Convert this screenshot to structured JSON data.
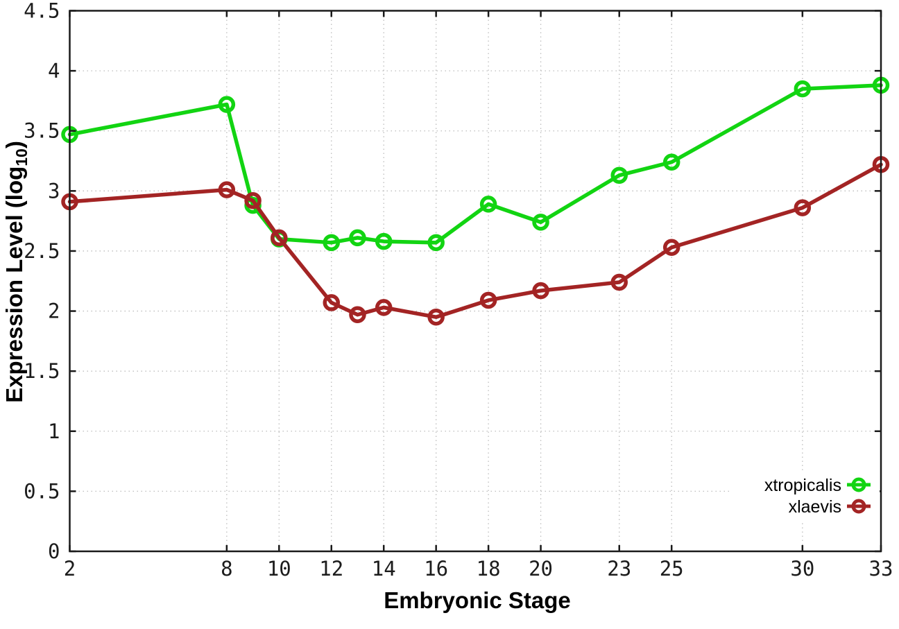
{
  "figure": {
    "background": "#ffffff",
    "xlabel": "Embryonic Stage",
    "ylabel_prefix": "Expression Level (log",
    "ylabel_sub": "10",
    "ylabel_suffix": ")"
  },
  "chart_data": {
    "type": "line",
    "title": "",
    "xlabel": "Embryonic Stage",
    "ylabel": "Expression Level (log10)",
    "x": [
      2,
      8,
      9,
      10,
      12,
      13,
      14,
      16,
      18,
      20,
      23,
      25,
      30,
      33
    ],
    "series": [
      {
        "name": "xtropicalis",
        "color": "#12d412",
        "values": [
          3.47,
          3.72,
          2.88,
          2.6,
          2.57,
          2.61,
          2.58,
          2.57,
          2.89,
          2.74,
          3.13,
          3.24,
          3.85,
          3.88
        ]
      },
      {
        "name": "xlaevis",
        "color": "#a32424",
        "values": [
          2.91,
          3.01,
          2.92,
          2.61,
          2.07,
          1.97,
          2.03,
          1.95,
          2.09,
          2.17,
          2.24,
          2.53,
          2.86,
          3.22
        ]
      }
    ],
    "x_tick_labels": [
      "2",
      "8",
      "10",
      "12",
      "14",
      "16",
      "18",
      "20",
      "23",
      "25",
      "30",
      "33"
    ],
    "y_ticks": [
      0,
      0.5,
      1,
      1.5,
      2,
      2.5,
      3,
      3.5,
      4,
      4.5
    ],
    "xlim": [
      2,
      33
    ],
    "ylim": [
      0,
      4.5
    ],
    "grid": true,
    "grid_style": "dotted",
    "grid_color": "#bcbcbc",
    "axis_color": "#1a1a1a",
    "marker": "open-circle",
    "legend_position": "bottom-right"
  }
}
